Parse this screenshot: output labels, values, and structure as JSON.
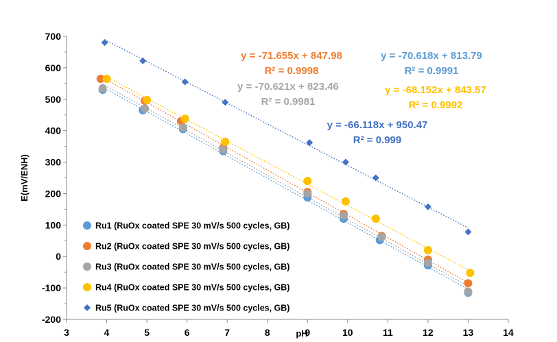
{
  "chart_data": {
    "type": "scatter",
    "xlabel": "pH",
    "ylabel": "E(mV/ENH)",
    "xlim": [
      3,
      14
    ],
    "ylim": [
      -200,
      700
    ],
    "x_ticks": [
      "3",
      "4",
      "5",
      "6",
      "7",
      "8",
      "9",
      "10",
      "11",
      "12",
      "13",
      "14"
    ],
    "y_ticks": [
      "-200",
      "-100",
      "0",
      "100",
      "200",
      "300",
      "400",
      "500",
      "600",
      "700"
    ],
    "grid": false,
    "legend_position": "bottom-left",
    "series": [
      {
        "name": "Ru1 (RuOx coated SPE 30 mV/s 500 cycles, GB)",
        "color": "#5B9BD5",
        "marker": "circle",
        "x": [
          3.9,
          4.9,
          5.9,
          6.9,
          9.0,
          9.9,
          10.8,
          12.0,
          13.0
        ],
        "y": [
          530,
          465,
          405,
          335,
          188,
          120,
          52,
          -28,
          -115
        ],
        "trendline": {
          "slope": -70.618,
          "intercept": 813.79
        },
        "equation": "y = -70.618x + 813.79",
        "r2": "R² = 0.9991"
      },
      {
        "name": "Ru2 (RuOx coated SPE 30 mV/s 500 cycles, GB)",
        "color": "#ED7D31",
        "marker": "circle",
        "x": [
          3.85,
          4.95,
          5.85,
          6.9,
          9.0,
          9.9,
          10.85,
          12.0,
          13.0
        ],
        "y": [
          565,
          495,
          430,
          345,
          205,
          135,
          65,
          -10,
          -85
        ],
        "trendline": {
          "slope": -71.655,
          "intercept": 847.98
        },
        "equation": "y = -71.655x + 847.98",
        "r2": "R² = 0.9998"
      },
      {
        "name": "Ru3 (RuOx coated SPE 30 mV/s 500 cycles, GB)",
        "color": "#A5A5A5",
        "marker": "circle",
        "x": [
          3.9,
          4.95,
          5.9,
          6.9,
          9.0,
          9.9,
          10.85,
          12.0,
          13.0
        ],
        "y": [
          535,
          470,
          410,
          340,
          200,
          130,
          62,
          -20,
          -112
        ],
        "trendline": {
          "slope": -70.621,
          "intercept": 823.46
        },
        "equation": "y = -70.621x + 823.46",
        "r2": "R² = 0.9981"
      },
      {
        "name": "Ru4 (RuOx coated SPE 30 mV/s 500 cycles, GB)",
        "color": "#FFC000",
        "marker": "circle",
        "x": [
          4.0,
          5.0,
          5.95,
          6.95,
          9.0,
          9.95,
          10.7,
          12.0,
          13.05
        ],
        "y": [
          565,
          498,
          438,
          365,
          240,
          175,
          120,
          20,
          -52
        ],
        "trendline": {
          "slope": -68.152,
          "intercept": 843.57
        },
        "equation": "y = -68.152x + 843.57",
        "r2": "R² = 0.9992"
      },
      {
        "name": "Ru5 (RuOx coated SPE 30 mV/s 500 cycles, GB)",
        "color": "#4472C4",
        "marker": "diamond",
        "x": [
          3.95,
          4.9,
          5.95,
          6.95,
          9.05,
          9.95,
          10.7,
          12.0,
          13.0
        ],
        "y": [
          680,
          622,
          555,
          490,
          362,
          300,
          250,
          158,
          78
        ],
        "trendline": {
          "slope": -66.118,
          "intercept": 950.47
        },
        "equation": "y = -66.118x + 950.47",
        "r2": "R² = 0.999"
      }
    ]
  }
}
